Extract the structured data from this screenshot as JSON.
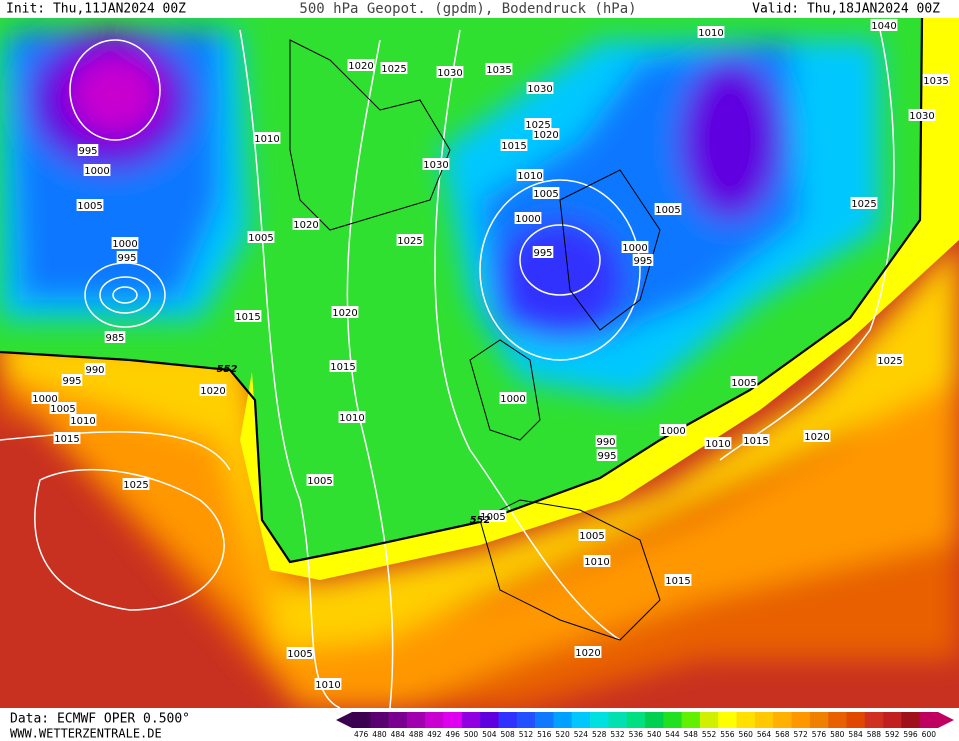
{
  "header": {
    "init": "Init: Thu,11JAN2024 00Z",
    "title": "500 hPa Geopot. (gpdm), Bodendruck (hPa)",
    "valid": "Valid: Thu,18JAN2024 00Z"
  },
  "isobar_labels": [
    "995",
    "1000",
    "1005",
    "1000",
    "995",
    "985",
    "990",
    "995",
    "1000",
    "1005",
    "1010",
    "1015",
    "1020",
    "1025",
    "1010",
    "1005",
    "1015",
    "1020",
    "1020",
    "1025",
    "1030",
    "1035",
    "1030",
    "1025",
    "1020",
    "1015",
    "1010",
    "1005",
    "1000",
    "995",
    "1000",
    "995",
    "1005",
    "1010",
    "1040",
    "1035",
    "1030",
    "1025",
    "1025",
    "1030",
    "1025",
    "1020",
    "1015",
    "1010",
    "1005",
    "1000",
    "990",
    "995",
    "1000",
    "1010",
    "1015",
    "1020",
    "1005",
    "1005",
    "1005",
    "1010",
    "1015",
    "1020",
    "1005",
    "1010"
  ],
  "contour_labels": [
    "552",
    "552"
  ],
  "colorbar": {
    "values": [
      476,
      480,
      484,
      488,
      492,
      496,
      500,
      504,
      508,
      512,
      516,
      520,
      524,
      528,
      532,
      536,
      540,
      544,
      548,
      552,
      556,
      560,
      564,
      568,
      572,
      576,
      580,
      584,
      588,
      592,
      596,
      600
    ],
    "colors": [
      "#3c0050",
      "#5a0070",
      "#7a0090",
      "#a000b0",
      "#c800d0",
      "#e000f0",
      "#9000e0",
      "#6000e0",
      "#3030ff",
      "#2050ff",
      "#1078ff",
      "#00a0ff",
      "#00c8ff",
      "#00e0e0",
      "#00e0b0",
      "#00e080",
      "#00d050",
      "#20e020",
      "#60f000",
      "#d0f000",
      "#ffff00",
      "#ffe000",
      "#ffc800",
      "#ffb000",
      "#ff9800",
      "#f08000",
      "#e86000",
      "#e04800",
      "#d03020",
      "#c02020",
      "#a01018",
      "#c00060"
    ]
  },
  "footer": {
    "data": "Data: ECMWF OPER 0.500°",
    "site": "WWW.WETTERZENTRALE.DE"
  }
}
